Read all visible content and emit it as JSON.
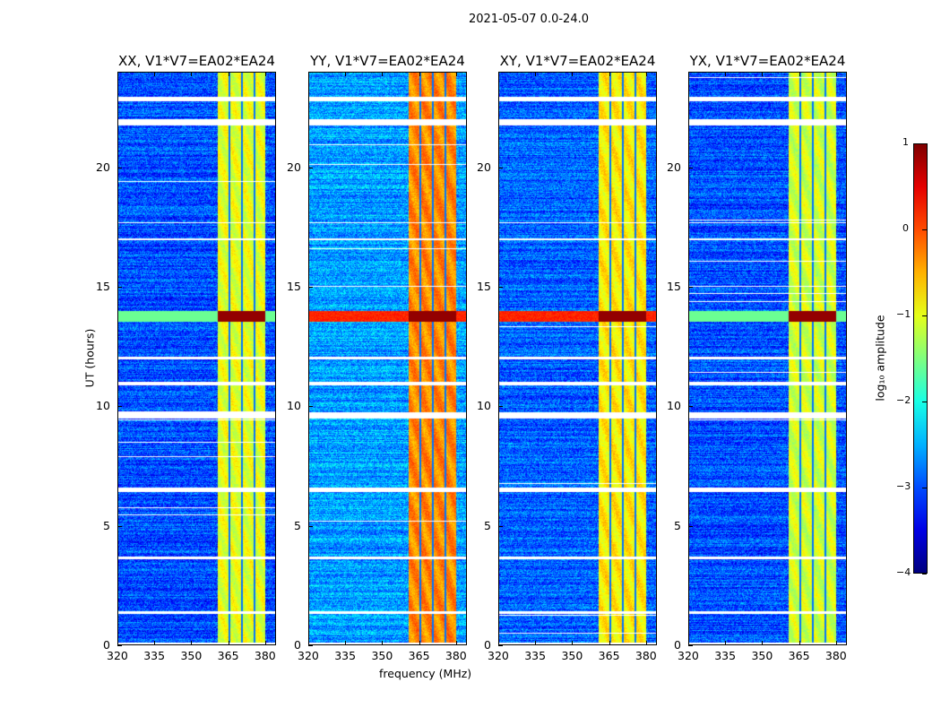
{
  "chart_data": {
    "type": "heatmap",
    "suptitle": "2021-05-07 0.0-24.0",
    "xlabel": "frequency (MHz)",
    "ylabel": "UT (hours)",
    "xlim": [
      320,
      384.4
    ],
    "ylim": [
      0,
      24
    ],
    "xticks": [
      "320",
      "335",
      "350",
      "365",
      "380"
    ],
    "yticks": [
      "0",
      "5",
      "10",
      "15",
      "20"
    ],
    "colorbar": {
      "label": "log₁₀ amplitude",
      "colormap": "jet",
      "range": [
        -4,
        1
      ],
      "ticks": [
        "−4",
        "−3",
        "−2",
        "−1",
        "0",
        "1"
      ]
    },
    "panels": [
      {
        "title": "XX, V1*V7=EA02*EA24",
        "background_log_amp": -3.0,
        "band_log_amp": -1.0,
        "event_log_amp": 0.9
      },
      {
        "title": "YY, V1*V7=EA02*EA24",
        "background_log_amp": -2.6,
        "band_log_amp": -0.3,
        "event_log_amp": 0.9
      },
      {
        "title": "XY, V1*V7=EA02*EA24",
        "background_log_amp": -2.9,
        "band_log_amp": -0.8,
        "event_log_amp": 0.9
      },
      {
        "title": "YX, V1*V7=EA02*EA24",
        "background_log_amp": -3.0,
        "band_log_amp": -1.1,
        "event_log_amp": 0.9
      }
    ],
    "rfi_band_MHz": [
      360.7,
      380
    ],
    "rfi_band_dark_lines_MHz": [
      365.5,
      370.6,
      375.6
    ],
    "strong_event_UT_hours": [
      13.55,
      14.0
    ],
    "flagged_UT_hours": [
      [
        22.8,
        23.0
      ],
      [
        21.8,
        22.05
      ],
      [
        17.7,
        17.75
      ],
      [
        17.0,
        17.05
      ],
      [
        12.0,
        12.1
      ],
      [
        10.9,
        11.05
      ],
      [
        9.5,
        9.75
      ],
      [
        6.4,
        6.6
      ],
      [
        3.6,
        3.7
      ],
      [
        1.3,
        1.4
      ],
      [
        0.0,
        0.1
      ]
    ]
  }
}
